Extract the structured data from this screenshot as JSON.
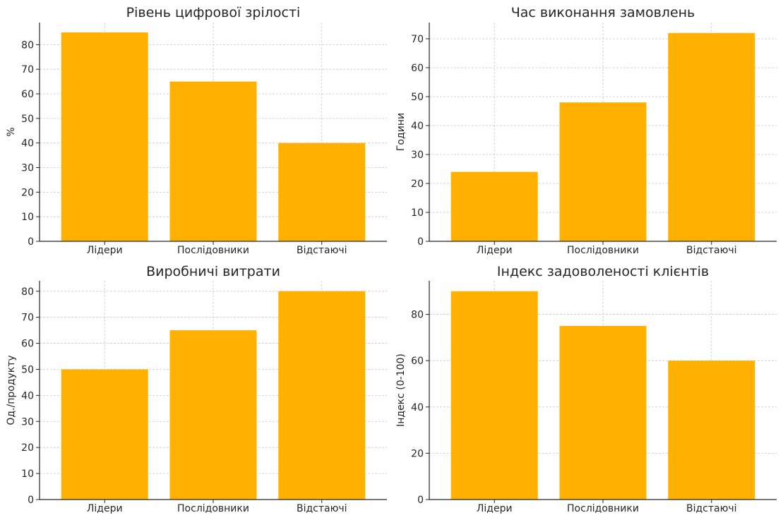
{
  "chart_data": [
    {
      "type": "bar",
      "title": "Рівень цифрової зрілості",
      "ylabel": "%",
      "categories": [
        "Лідери",
        "Послідовники",
        "Відстаючі"
      ],
      "values": [
        85,
        65,
        40
      ],
      "yticks": [
        0,
        10,
        20,
        30,
        40,
        50,
        60,
        70,
        80
      ],
      "ylim": [
        0,
        89
      ],
      "grid": true,
      "color": "#FFB000"
    },
    {
      "type": "bar",
      "title": "Час виконання замовлень",
      "ylabel": "Години",
      "categories": [
        "Лідери",
        "Послідовники",
        "Відстаючі"
      ],
      "values": [
        24,
        48,
        72
      ],
      "yticks": [
        0,
        10,
        20,
        30,
        40,
        50,
        60,
        70
      ],
      "ylim": [
        0,
        75.6
      ],
      "grid": true,
      "color": "#FFB000"
    },
    {
      "type": "bar",
      "title": "Виробничі витрати",
      "ylabel": "Од./продукту",
      "categories": [
        "Лідери",
        "Послідовники",
        "Відстаючі"
      ],
      "values": [
        50,
        65,
        80
      ],
      "yticks": [
        0,
        10,
        20,
        30,
        40,
        50,
        60,
        70,
        80
      ],
      "ylim": [
        0,
        84
      ],
      "grid": true,
      "color": "#FFB000"
    },
    {
      "type": "bar",
      "title": "Індекс задоволеності клієнтів",
      "ylabel": "Індекс (0-100)",
      "categories": [
        "Лідери",
        "Послідовники",
        "Відстаючі"
      ],
      "values": [
        90,
        75,
        60
      ],
      "yticks": [
        0,
        20,
        40,
        60,
        80
      ],
      "ylim": [
        0,
        94.5
      ],
      "grid": true,
      "color": "#FFB000"
    }
  ]
}
